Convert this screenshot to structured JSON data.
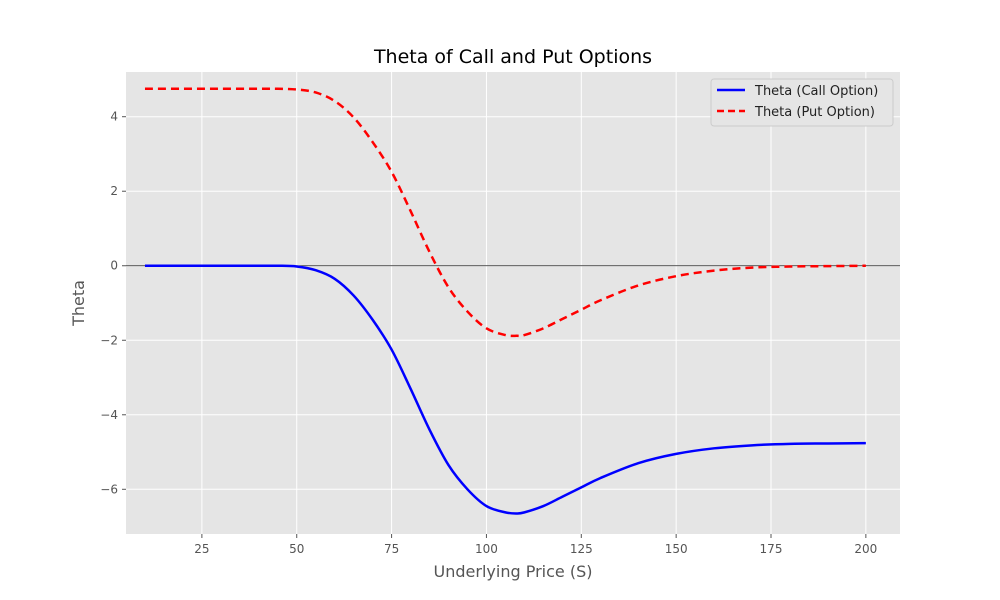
{
  "chart_data": {
    "type": "line",
    "title": "Theta of Call and Put Options",
    "xlabel": "Underlying Price (S)",
    "ylabel": "Theta",
    "xlim": [
      5,
      209
    ],
    "ylim": [
      -7.2,
      5.2
    ],
    "xticks": [
      25,
      50,
      75,
      100,
      125,
      150,
      175,
      200
    ],
    "yticks": [
      -6,
      -4,
      -2,
      0,
      2,
      4
    ],
    "grid": true,
    "legend_position": "upper right",
    "background": "#e5e5e5",
    "reference_line_y": 0,
    "series": [
      {
        "name": "Theta (Call Option)",
        "color": "#0000ff",
        "style": "solid",
        "x": [
          10,
          20,
          30,
          40,
          45,
          50,
          55,
          60,
          65,
          70,
          75,
          80,
          85,
          90,
          95,
          100,
          105,
          108,
          110,
          115,
          120,
          125,
          130,
          140,
          150,
          160,
          170,
          180,
          190,
          200
        ],
        "y": [
          0,
          0,
          0,
          0,
          0,
          -0.02,
          -0.12,
          -0.35,
          -0.8,
          -1.45,
          -2.25,
          -3.3,
          -4.4,
          -5.35,
          -6.0,
          -6.45,
          -6.62,
          -6.65,
          -6.62,
          -6.45,
          -6.2,
          -5.95,
          -5.7,
          -5.3,
          -5.05,
          -4.9,
          -4.82,
          -4.78,
          -4.77,
          -4.76
        ]
      },
      {
        "name": "Theta (Put Option)",
        "color": "#ff0000",
        "style": "dashed",
        "x": [
          10,
          20,
          30,
          40,
          45,
          50,
          55,
          60,
          65,
          70,
          75,
          80,
          85,
          90,
          95,
          100,
          105,
          108,
          110,
          115,
          120,
          125,
          130,
          140,
          150,
          160,
          170,
          180,
          190,
          200
        ],
        "y": [
          4.75,
          4.75,
          4.75,
          4.75,
          4.75,
          4.73,
          4.65,
          4.42,
          3.98,
          3.32,
          2.52,
          1.47,
          0.37,
          -0.58,
          -1.23,
          -1.68,
          -1.86,
          -1.88,
          -1.86,
          -1.68,
          -1.43,
          -1.18,
          -0.93,
          -0.53,
          -0.28,
          -0.13,
          -0.05,
          -0.02,
          -0.01,
          0.0
        ]
      }
    ]
  }
}
